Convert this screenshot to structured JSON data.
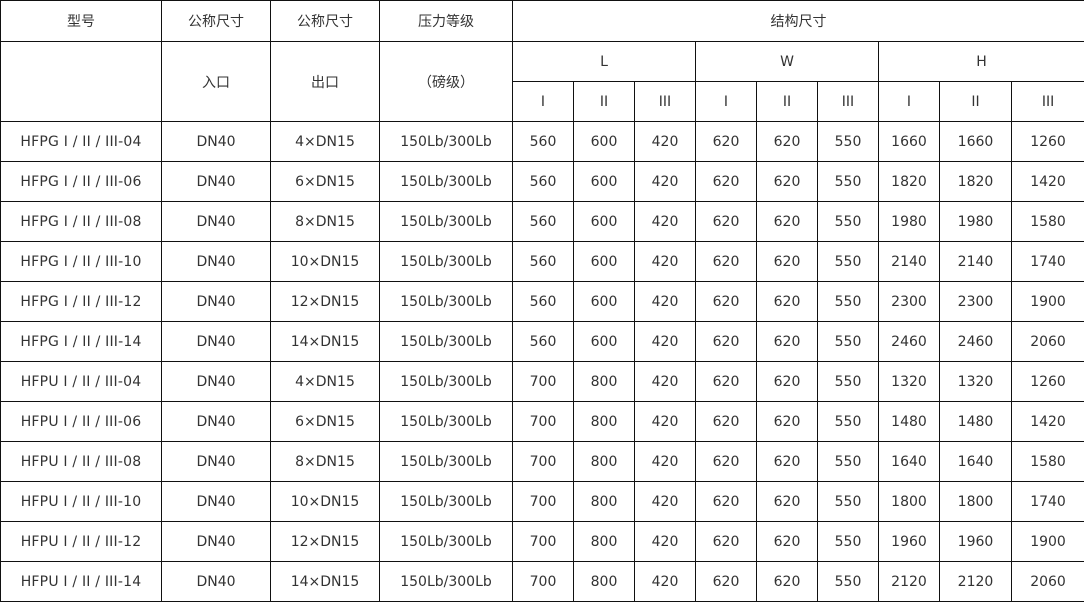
{
  "header": {
    "model": "型号",
    "nominal_in": "公称尺寸",
    "nominal_out": "公称尺寸",
    "pressure": "压力等级",
    "structure": "结构尺寸",
    "inlet": "入口",
    "outlet": "出口",
    "pressure_unit": "（磅级）",
    "L": "L",
    "W": "W",
    "H": "H",
    "sub": [
      "I",
      "II",
      "III",
      "I",
      "II",
      "III",
      "I",
      "II",
      "III"
    ]
  },
  "rows": [
    [
      "HFPG I / II / III-04",
      "DN40",
      "4×DN15",
      "150Lb/300Lb",
      "560",
      "600",
      "420",
      "620",
      "620",
      "550",
      "1660",
      "1660",
      "1260"
    ],
    [
      "HFPG I / II / III-06",
      "DN40",
      "6×DN15",
      "150Lb/300Lb",
      "560",
      "600",
      "420",
      "620",
      "620",
      "550",
      "1820",
      "1820",
      "1420"
    ],
    [
      "HFPG I / II / III-08",
      "DN40",
      "8×DN15",
      "150Lb/300Lb",
      "560",
      "600",
      "420",
      "620",
      "620",
      "550",
      "1980",
      "1980",
      "1580"
    ],
    [
      "HFPG I / II / III-10",
      "DN40",
      "10×DN15",
      "150Lb/300Lb",
      "560",
      "600",
      "420",
      "620",
      "620",
      "550",
      "2140",
      "2140",
      "1740"
    ],
    [
      "HFPG I / II / III-12",
      "DN40",
      "12×DN15",
      "150Lb/300Lb",
      "560",
      "600",
      "420",
      "620",
      "620",
      "550",
      "2300",
      "2300",
      "1900"
    ],
    [
      "HFPG I / II / III-14",
      "DN40",
      "14×DN15",
      "150Lb/300Lb",
      "560",
      "600",
      "420",
      "620",
      "620",
      "550",
      "2460",
      "2460",
      "2060"
    ],
    [
      "HFPU I / II / III-04",
      "DN40",
      "4×DN15",
      "150Lb/300Lb",
      "700",
      "800",
      "420",
      "620",
      "620",
      "550",
      "1320",
      "1320",
      "1260"
    ],
    [
      "HFPU I / II / III-06",
      "DN40",
      "6×DN15",
      "150Lb/300Lb",
      "700",
      "800",
      "420",
      "620",
      "620",
      "550",
      "1480",
      "1480",
      "1420"
    ],
    [
      "HFPU I / II / III-08",
      "DN40",
      "8×DN15",
      "150Lb/300Lb",
      "700",
      "800",
      "420",
      "620",
      "620",
      "550",
      "1640",
      "1640",
      "1580"
    ],
    [
      "HFPU I / II / III-10",
      "DN40",
      "10×DN15",
      "150Lb/300Lb",
      "700",
      "800",
      "420",
      "620",
      "620",
      "550",
      "1800",
      "1800",
      "1740"
    ],
    [
      "HFPU I / II / III-12",
      "DN40",
      "12×DN15",
      "150Lb/300Lb",
      "700",
      "800",
      "420",
      "620",
      "620",
      "550",
      "1960",
      "1960",
      "1900"
    ],
    [
      "HFPU I / II / III-14",
      "DN40",
      "14×DN15",
      "150Lb/300Lb",
      "700",
      "800",
      "420",
      "620",
      "620",
      "550",
      "2120",
      "2120",
      "2060"
    ]
  ]
}
